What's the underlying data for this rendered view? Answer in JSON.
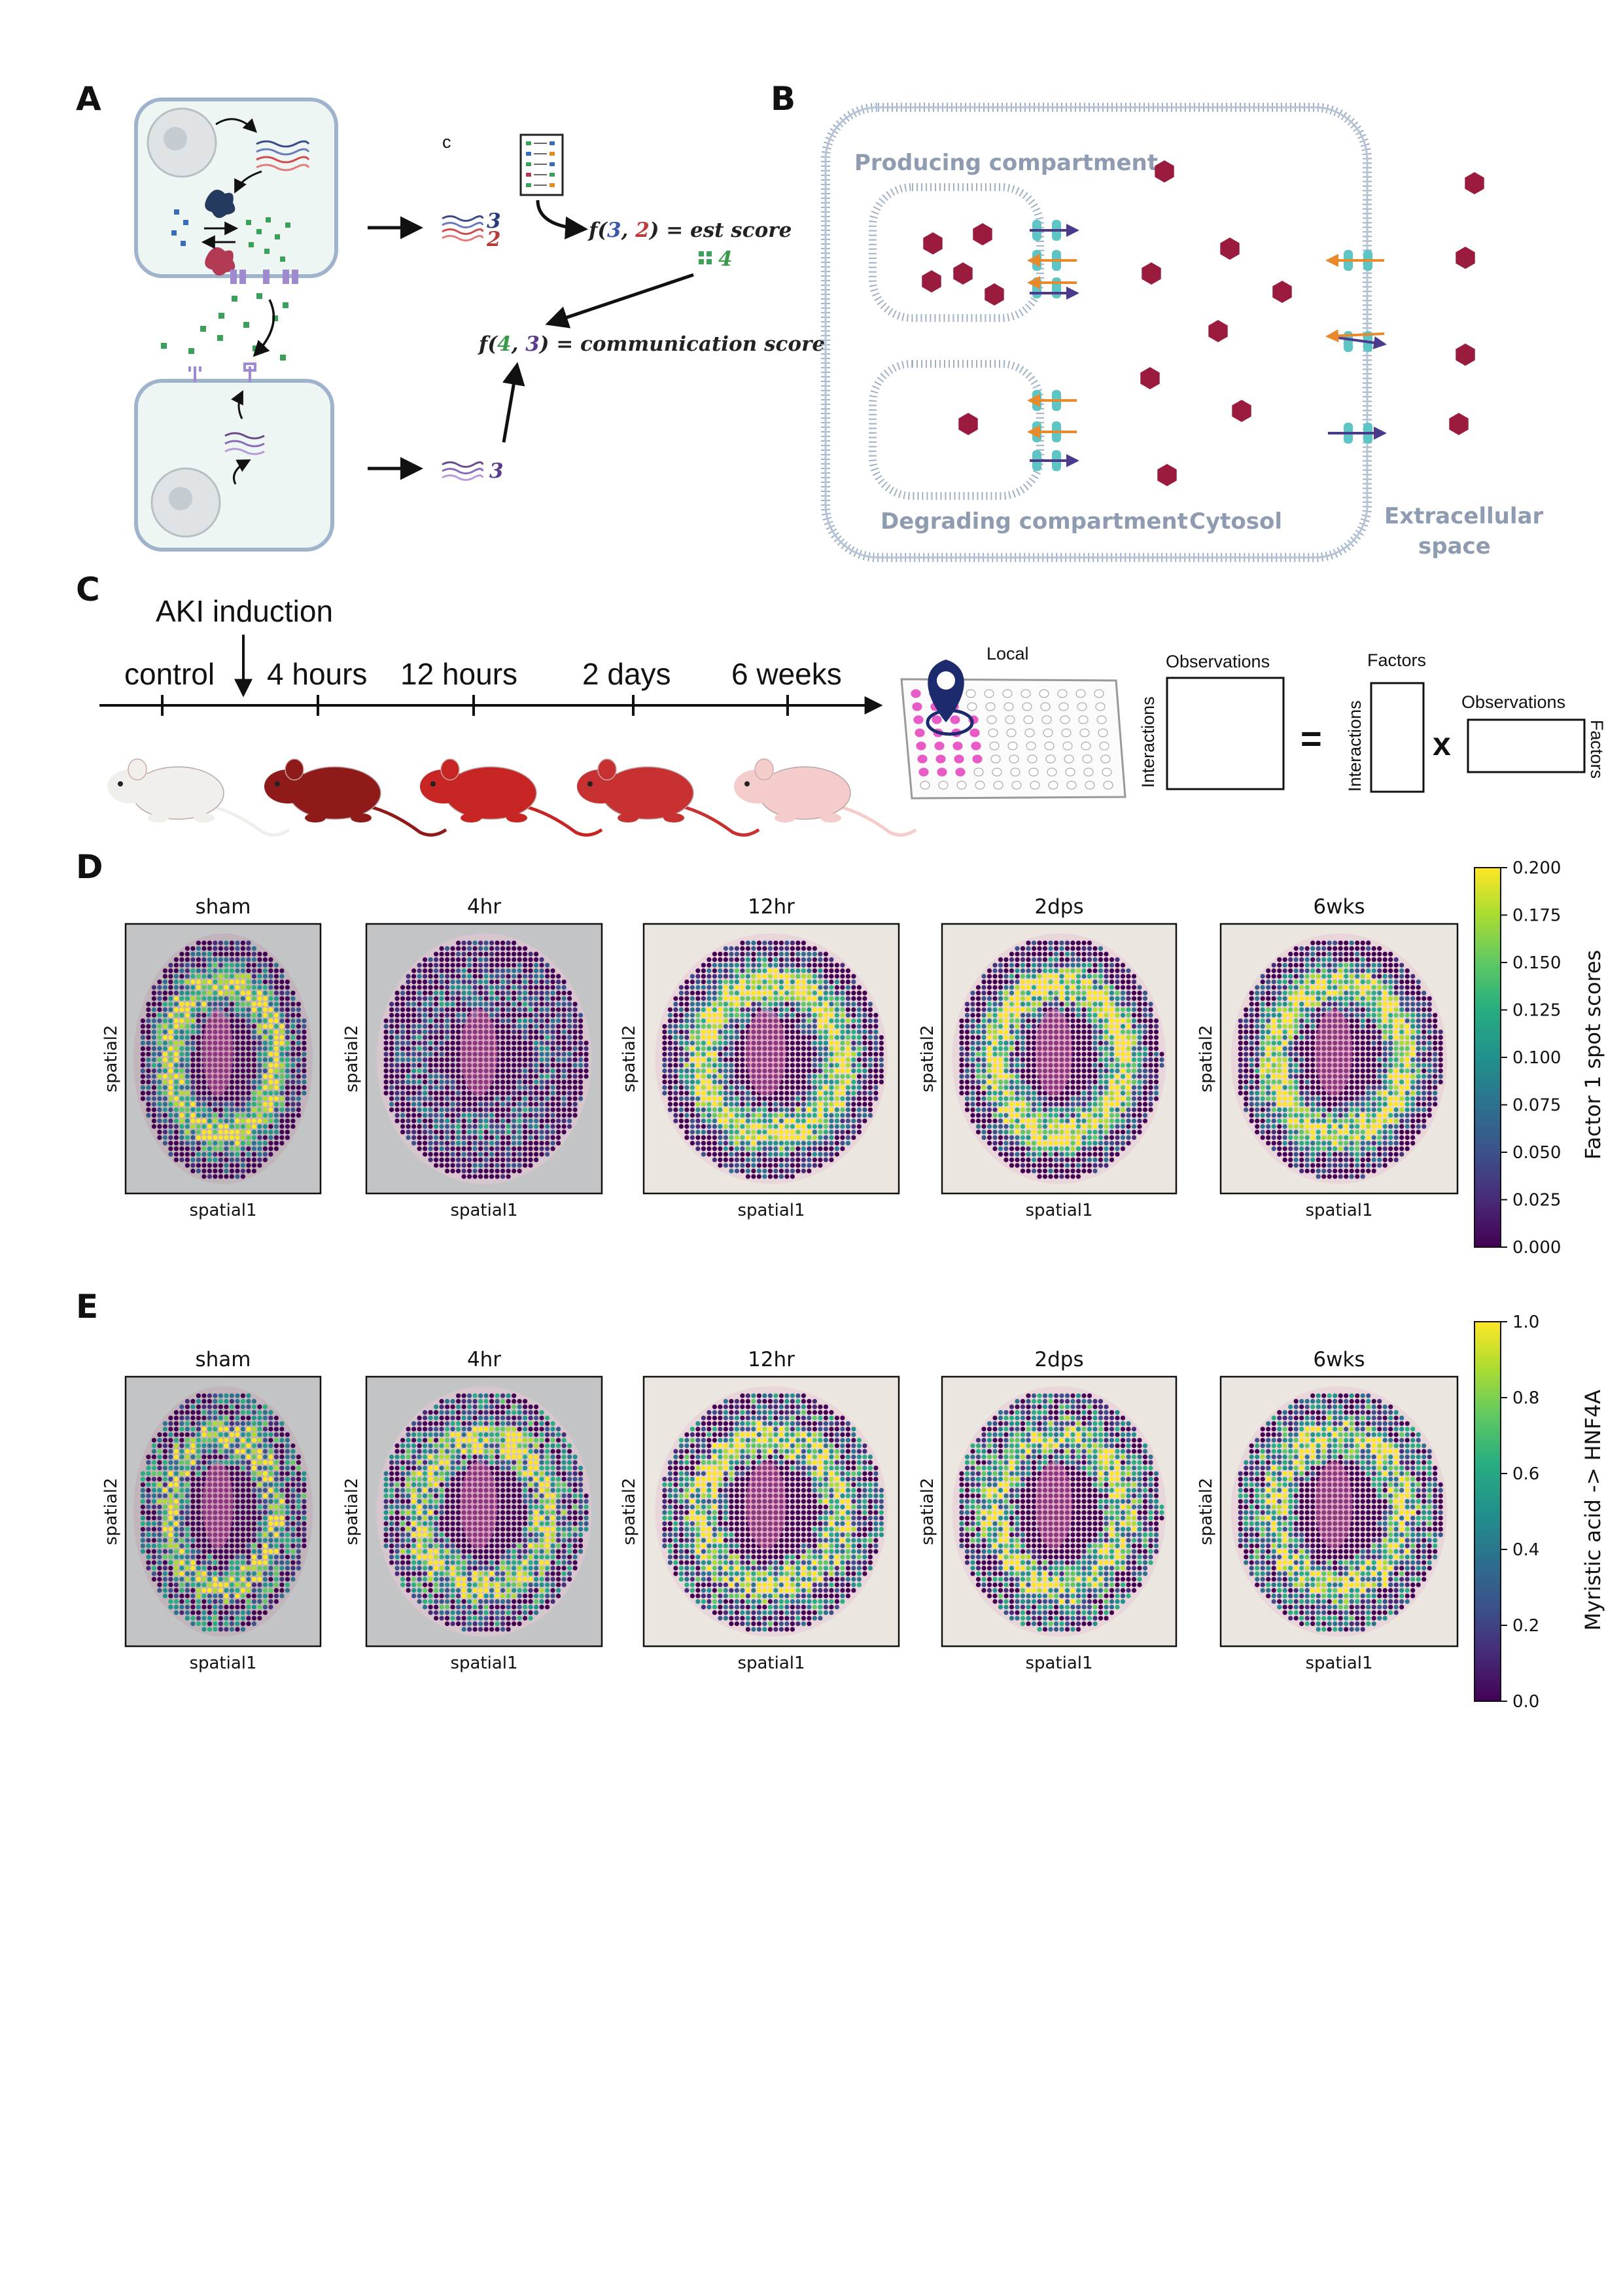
{
  "panels": {
    "A": "A",
    "B": "B",
    "C": "C",
    "D": "D",
    "E": "E"
  },
  "panel_a": {
    "small_c": "c",
    "num_3": "3",
    "num_2": "2",
    "num_4": "4",
    "num_3b": "3",
    "formula1": [
      "f(",
      "3",
      ", ",
      "2",
      ") =  est score"
    ],
    "formula2": [
      "f(",
      "4",
      ", ",
      "3",
      ") = communication score"
    ]
  },
  "panel_b": {
    "producing": "Producing compartment",
    "degrading": "Degrading compartment",
    "cytosol": "Cytosol",
    "extracellular_1": "Extracellular",
    "extracellular_2": "space"
  },
  "panel_c": {
    "aki": "AKI induction",
    "timepoints": [
      "control",
      "4 hours",
      "12 hours",
      "2 days",
      "6 weeks"
    ],
    "local": "Local",
    "obs1": "Observations",
    "interactions1": "Interactions",
    "factors_top": "Factors",
    "interactions2": "Interactions",
    "obs2": "Observations",
    "factors_side": "Factors",
    "equals": "=",
    "times": "x",
    "mouse_colors": [
      "#f1efec",
      "#8e1a1a",
      "#c72424",
      "#c73131",
      "#f4cccc"
    ]
  },
  "panel_d": {
    "titles": [
      "sham",
      "4hr",
      "12hr",
      "2dps",
      "6wks"
    ],
    "xlabel": "spatial1",
    "ylabel": "spatial2",
    "colorbar_label": "Factor 1 spot scores",
    "colorbar_ticks": [
      "0.200",
      "0.175",
      "0.150",
      "0.125",
      "0.100",
      "0.075",
      "0.050",
      "0.025",
      "0.000"
    ],
    "colorbar_range": [
      0.0,
      0.2
    ]
  },
  "panel_e": {
    "titles": [
      "sham",
      "4hr",
      "12hr",
      "2dps",
      "6wks"
    ],
    "xlabel": "spatial1",
    "ylabel": "spatial2",
    "colorbar_label": "Myristic acid -> HNF4A",
    "colorbar_ticks": [
      "1.0",
      "0.8",
      "0.6",
      "0.4",
      "0.2",
      "0.0"
    ],
    "colorbar_range": [
      0.0,
      1.0
    ]
  },
  "colors": {
    "viridis": [
      "#440154",
      "#3b528b",
      "#21918c",
      "#5ec962",
      "#fde725"
    ],
    "hexagon": "#9b1b3e",
    "transporter": "#5fc4c4",
    "arrow_orange": "#e8892b",
    "arrow_purple": "#4b3a8c"
  }
}
